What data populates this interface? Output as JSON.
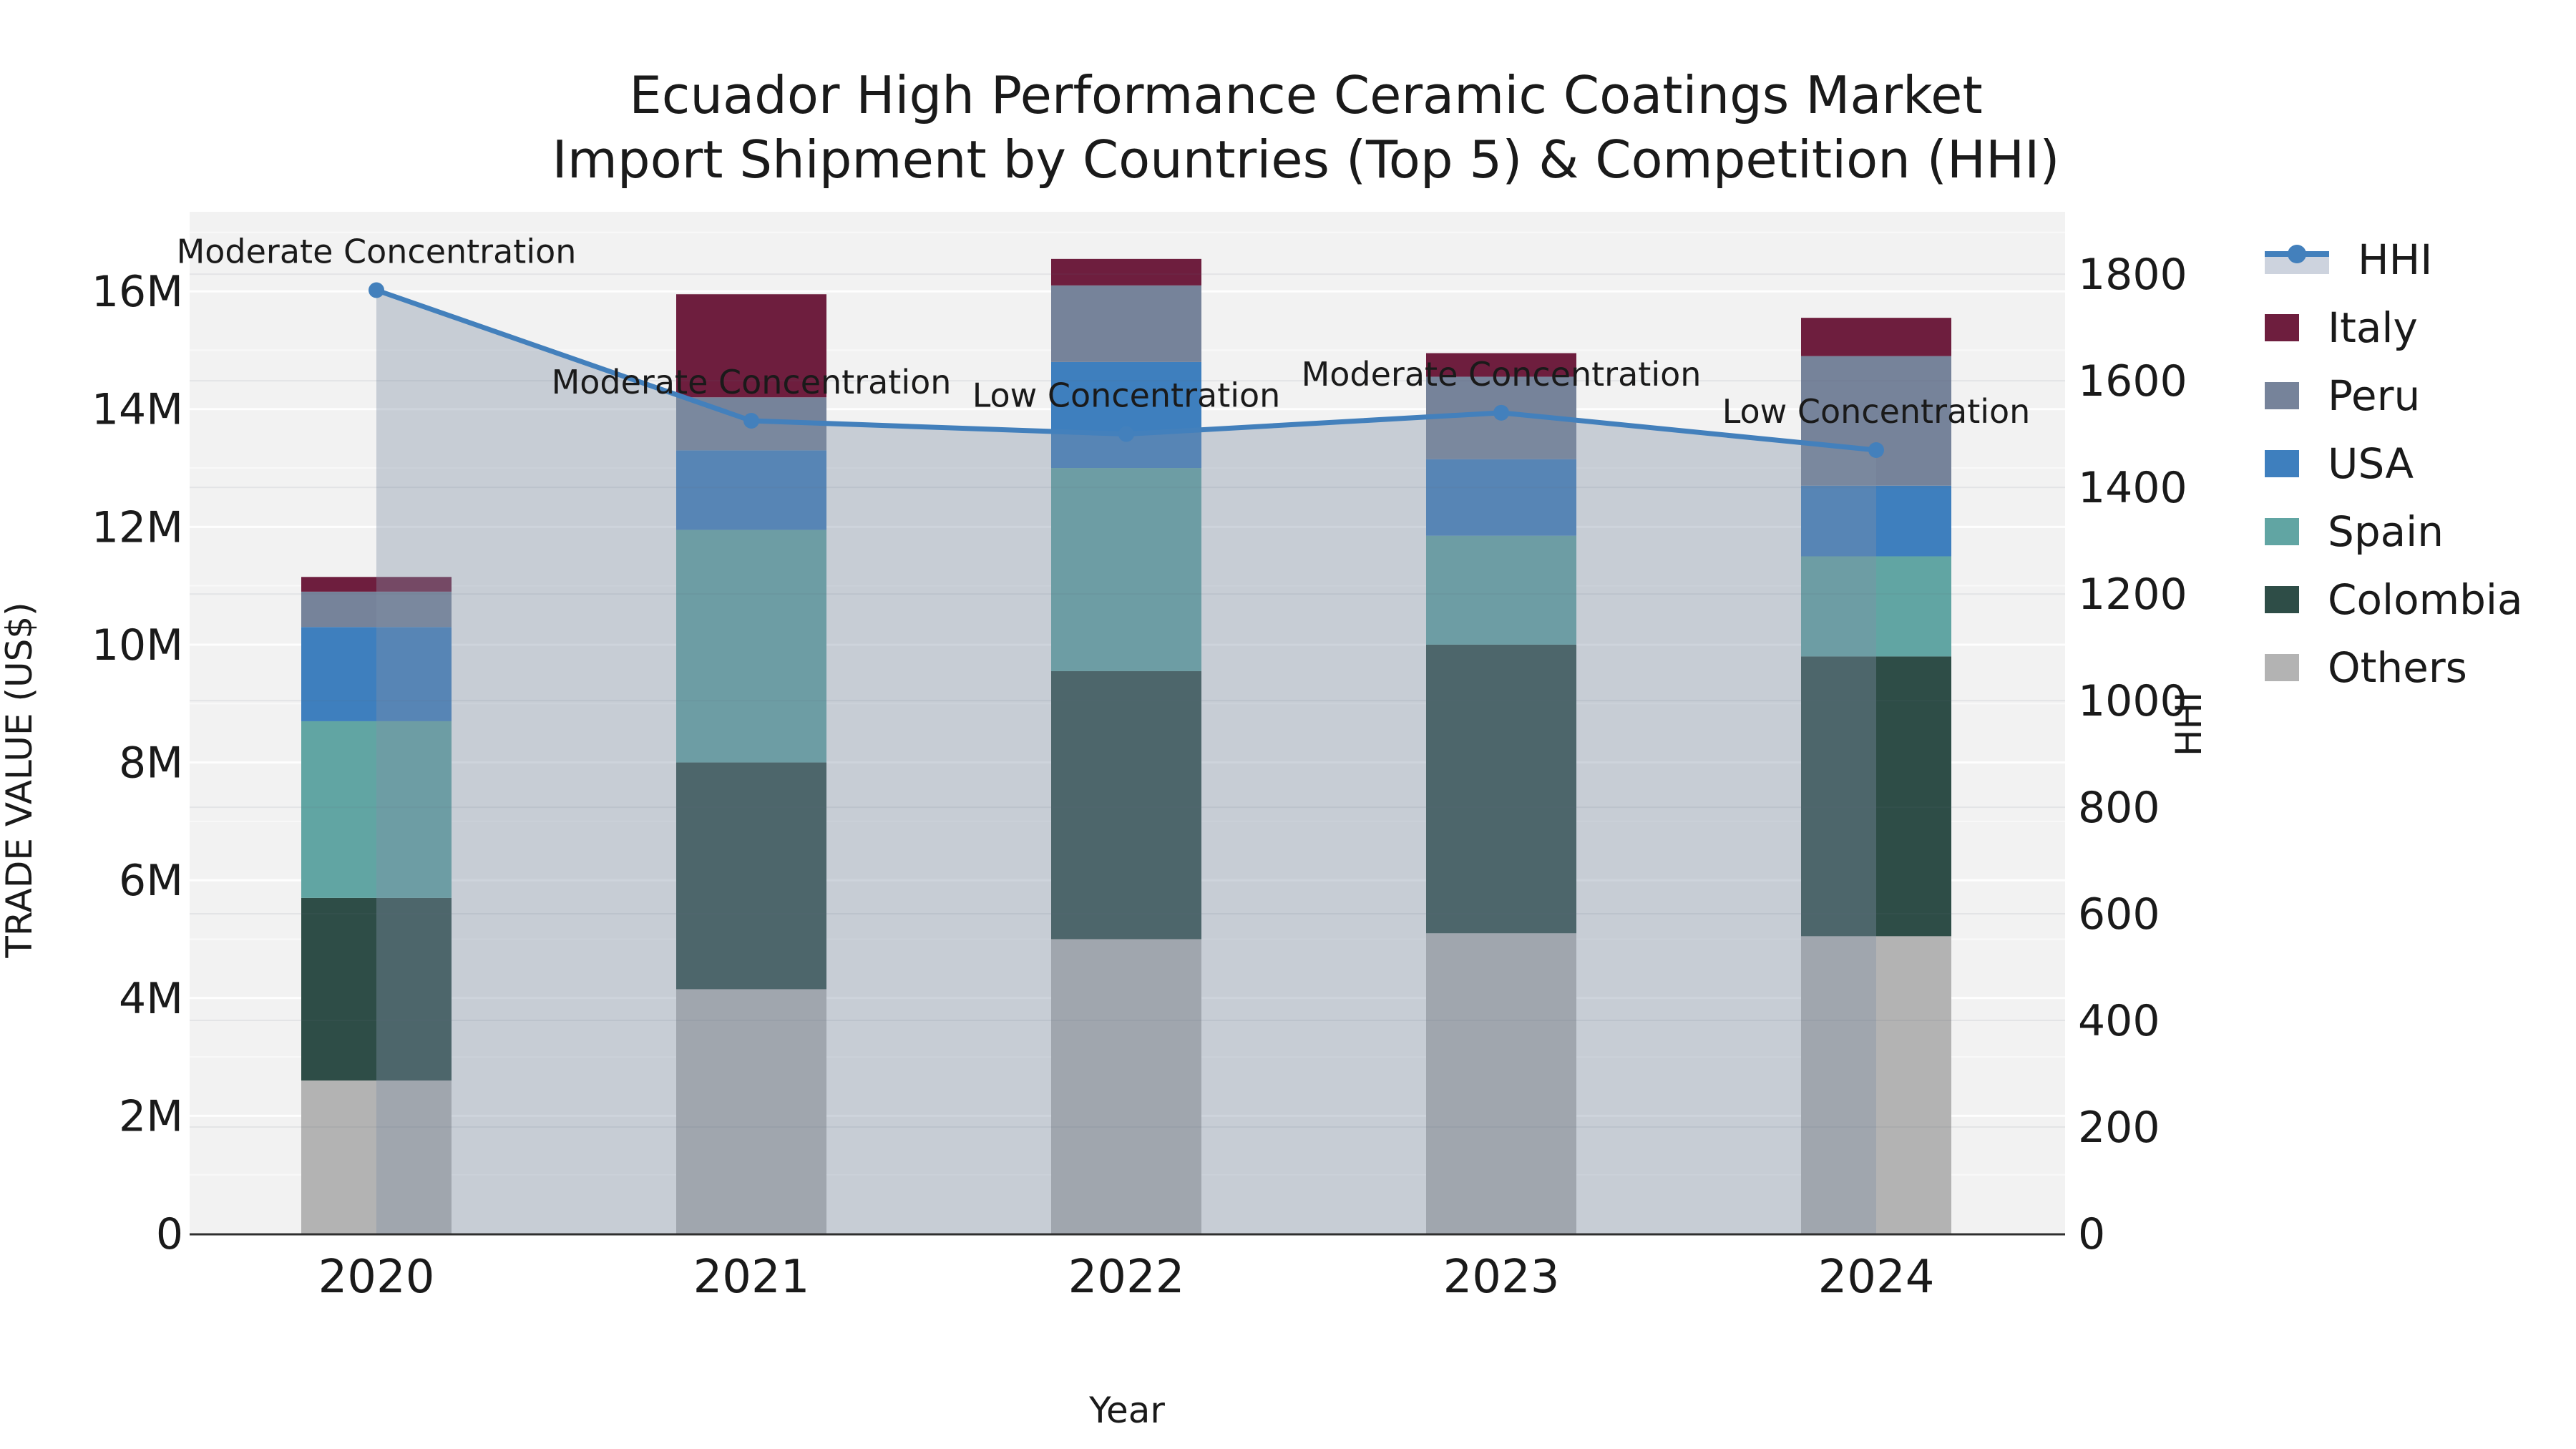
{
  "title": {
    "line1": "Ecuador High Performance Ceramic Coatings Market",
    "line2": "Import Shipment by Countries (Top 5) & Competition (HHI)"
  },
  "colors": {
    "plot_bg": "#f2f2f2",
    "text": "#1a1a1a",
    "spine": "#2f2f2f",
    "hhi_line": "#4380bc",
    "hhi_area_fill": "rgba(130,145,165,0.38)",
    "hhi_legend_patch": "#cdd3de"
  },
  "chart_data": {
    "type": "bar",
    "subtype": "stacked-bars-with-line",
    "categories": [
      "2020",
      "2021",
      "2022",
      "2023",
      "2024"
    ],
    "stack_order_bottom_to_top": [
      "Others",
      "Colombia",
      "Spain",
      "USA",
      "Peru",
      "Italy"
    ],
    "series": [
      {
        "name": "Others",
        "color": "#b3b3b3",
        "values": [
          2.6,
          4.15,
          5.0,
          5.1,
          5.05
        ]
      },
      {
        "name": "Colombia",
        "color": "#2e4d47",
        "values": [
          3.1,
          3.85,
          4.55,
          4.9,
          4.75
        ]
      },
      {
        "name": "Spain",
        "color": "#61a5a3",
        "values": [
          3.0,
          3.95,
          3.45,
          1.85,
          1.7
        ]
      },
      {
        "name": "USA",
        "color": "#3e7fbe",
        "values": [
          1.6,
          1.35,
          1.8,
          1.3,
          1.2
        ]
      },
      {
        "name": "Peru",
        "color": "#76839a",
        "values": [
          0.6,
          0.9,
          1.3,
          1.4,
          2.2
        ]
      },
      {
        "name": "Italy",
        "color": "#6e1e3e",
        "values": [
          0.25,
          1.75,
          0.45,
          0.4,
          0.65
        ]
      }
    ],
    "bar_totals": [
      11.15,
      15.95,
      16.55,
      14.95,
      15.55
    ],
    "values_unit": "millions US$",
    "line_series": {
      "name": "HHI",
      "axis": "right",
      "color": "#4380bc",
      "values": [
        1770,
        1525,
        1500,
        1540,
        1470
      ]
    },
    "annotations": [
      {
        "category": "2020",
        "text": "Moderate Concentration"
      },
      {
        "category": "2021",
        "text": "Moderate Concentration"
      },
      {
        "category": "2022",
        "text": "Low Concentration"
      },
      {
        "category": "2023",
        "text": "Moderate Concentration"
      },
      {
        "category": "2024",
        "text": "Low Concentration"
      }
    ],
    "title": "Ecuador High Performance Ceramic Coatings Market Import Shipment by Countries (Top 5) & Competition (HHI)",
    "xlabel": "Year",
    "ylabel": "TRADE VALUE (US$)",
    "y2label": "HHI",
    "ylim": [
      0,
      17.35
    ],
    "y2lim": [
      0,
      1917
    ],
    "yticks_step": 2,
    "ytick_max": 16,
    "ytick_format": "{v}M",
    "y2ticks_step": 200,
    "y2tick_max": 1800,
    "grid": true,
    "legend_position": "right",
    "legend_order": [
      "HHI",
      "Italy",
      "Peru",
      "USA",
      "Spain",
      "Colombia",
      "Others"
    ]
  }
}
